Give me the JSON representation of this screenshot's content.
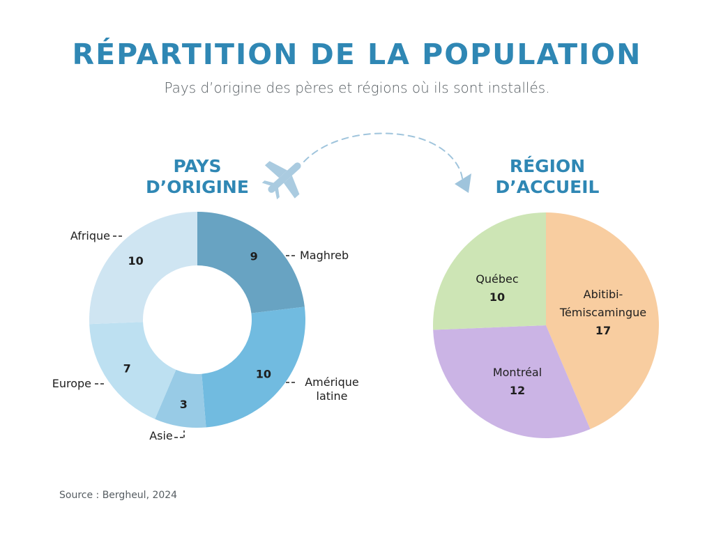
{
  "header": {
    "title": "RÉPARTITION DE LA POPULATION",
    "subtitle": "Pays d’origine des pères et régions où ils sont installés."
  },
  "origin_title": [
    "PAYS",
    "D’ORIGINE"
  ],
  "host_title": [
    "RÉGION",
    "D’ACCUEIL"
  ],
  "source": "Source : Bergheul, 2024",
  "icons": {
    "plane": "airplane-icon",
    "arrow": "dashed-arc-arrow"
  },
  "chart_data": [
    {
      "type": "pie",
      "variant": "donut",
      "title": "PAYS D’ORIGINE",
      "categories": [
        "Maghreb",
        "Amérique latine",
        "Asie",
        "Europe",
        "Afrique"
      ],
      "values": [
        9,
        10,
        3,
        7,
        10
      ],
      "colors": [
        "#68a3c2",
        "#71bbe0",
        "#98cbe6",
        "#bde0f1",
        "#cfe5f2"
      ],
      "start": "12 o'clock",
      "direction": "clockwise",
      "labels": "outside with dashed leaders; values inside slices"
    },
    {
      "type": "pie",
      "title": "RÉGION D’ACCUEIL",
      "categories": [
        "Abitibi-Témiscamingue",
        "Montréal",
        "Québec"
      ],
      "values": [
        17,
        12,
        10
      ],
      "colors": [
        "#f8cda0",
        "#cbb4e5",
        "#cde5b5"
      ],
      "start": "12 o'clock",
      "direction": "clockwise",
      "labels": "inside slices with values"
    }
  ]
}
